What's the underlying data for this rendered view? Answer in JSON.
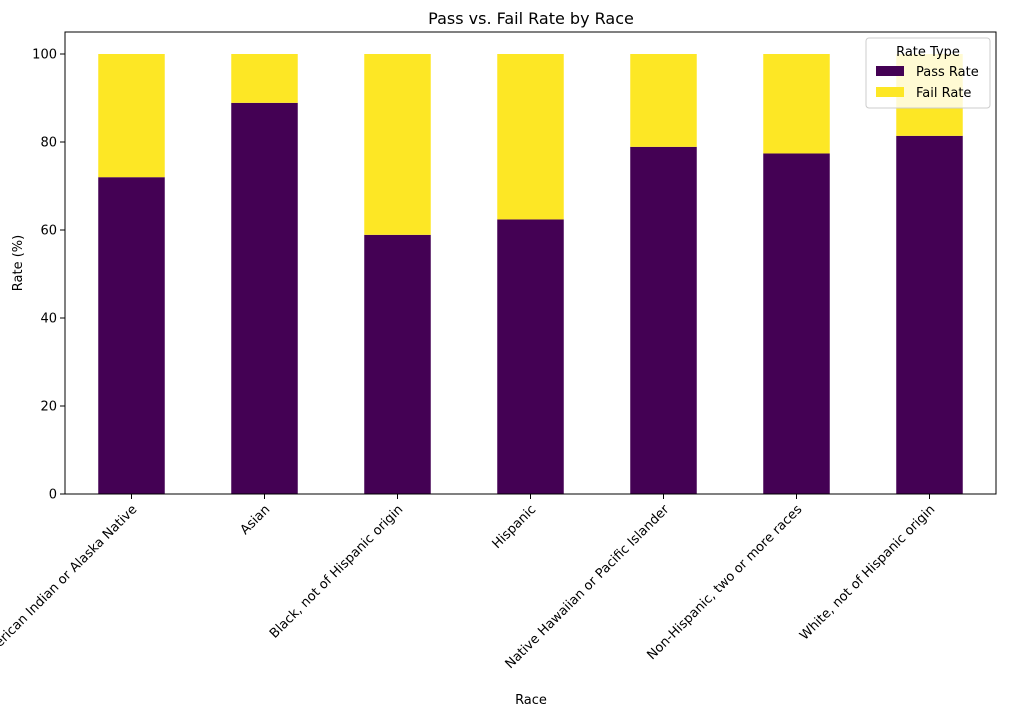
{
  "chart_data": {
    "type": "bar",
    "stacked": true,
    "title": "Pass vs. Fail Rate by Race",
    "xlabel": "Race",
    "ylabel": "Rate (%)",
    "ylim": [
      0,
      105
    ],
    "yticks": [
      0,
      20,
      40,
      60,
      80,
      100
    ],
    "grid": false,
    "categories": [
      "American Indian or Alaska Native",
      "Asian",
      "Black, not of Hispanic origin",
      "Hispanic",
      "Native Hawaiian  or Pacific Islander",
      "Non-Hispanic, two or more races",
      "White, not of Hispanic origin"
    ],
    "series": [
      {
        "name": "Pass Rate",
        "color": "#440154",
        "values": [
          72.0,
          88.9,
          58.9,
          62.4,
          78.9,
          77.4,
          81.4
        ]
      },
      {
        "name": "Fail Rate",
        "color": "#fde725",
        "values": [
          28.0,
          11.1,
          41.1,
          37.6,
          21.1,
          22.6,
          18.6
        ]
      }
    ],
    "legend": {
      "title": "Rate Type",
      "placement": "top-right"
    }
  }
}
